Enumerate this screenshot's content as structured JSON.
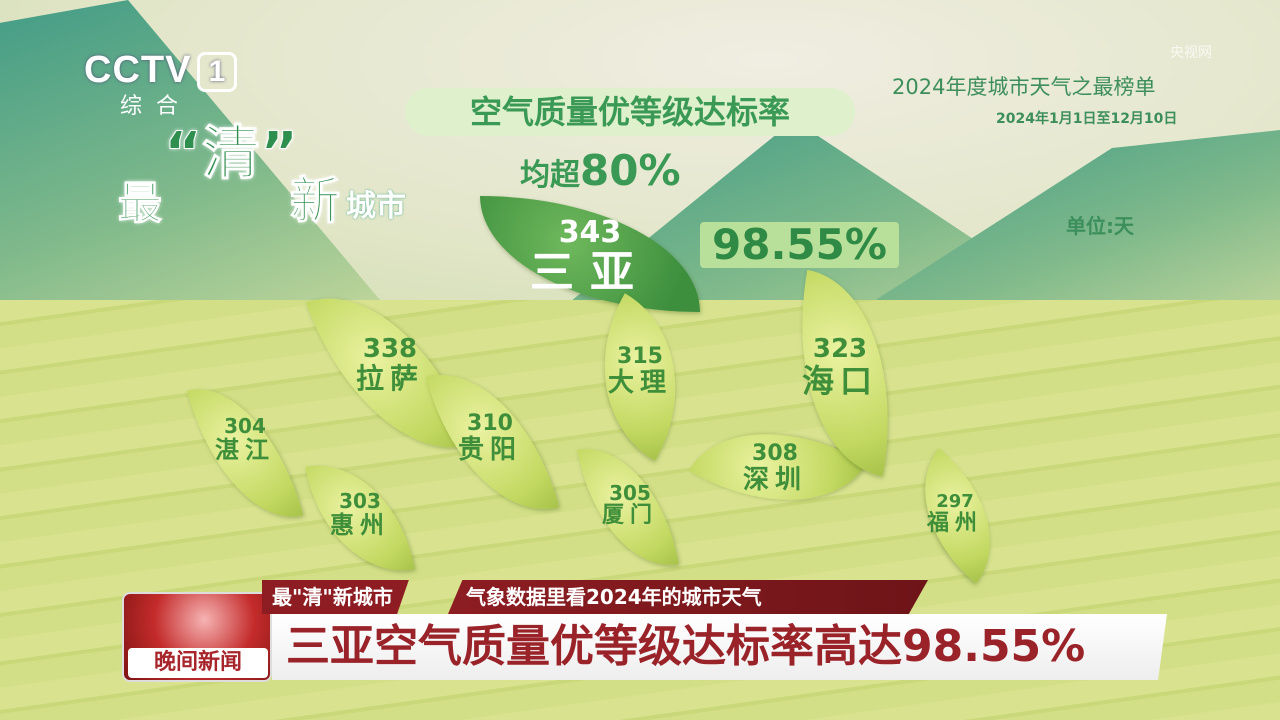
{
  "channel": {
    "logo": "CCTV",
    "number": "1",
    "sub": "综合",
    "watermark": "央视网"
  },
  "slogan": {
    "a": "最",
    "b": "“清”",
    "c": "新",
    "d": "城市"
  },
  "headline": {
    "line1": "空气质量优等级达标率",
    "line2_prefix": "均超",
    "line2_value": "80%"
  },
  "ranking": {
    "title": "2024年度城市天气之最榜单",
    "period": "2024年1月1日至12月10日",
    "unit": "单位:天"
  },
  "top": {
    "city": "三亚",
    "days": "343",
    "rate": "98.55%"
  },
  "chart_data": {
    "type": "table",
    "unit": "天",
    "categories": [
      "三亚",
      "拉萨",
      "海口",
      "大理",
      "贵阳",
      "深圳",
      "厦门",
      "湛江",
      "惠州",
      "福州"
    ],
    "values": [
      343,
      338,
      323,
      315,
      310,
      308,
      305,
      304,
      303,
      297
    ]
  },
  "cities": [
    {
      "name": "拉萨",
      "days": "338"
    },
    {
      "name": "湛江",
      "days": "304"
    },
    {
      "name": "惠州",
      "days": "303"
    },
    {
      "name": "贵阳",
      "days": "310"
    },
    {
      "name": "大理",
      "days": "315"
    },
    {
      "name": "厦门",
      "days": "305"
    },
    {
      "name": "深圳",
      "days": "308"
    },
    {
      "name": "海口",
      "days": "323"
    },
    {
      "name": "福州",
      "days": "297"
    }
  ],
  "ticker": {
    "program": "晚间新闻",
    "tag": "最\"清\"新城市",
    "topic": "气象数据里看2024年的城市天气",
    "title": "三亚空气质量优等级达标率高达98.55%"
  },
  "colors": {
    "accent_green": "#3a9a55",
    "news_red": "#8d1d22",
    "title_red": "#9a2329"
  }
}
